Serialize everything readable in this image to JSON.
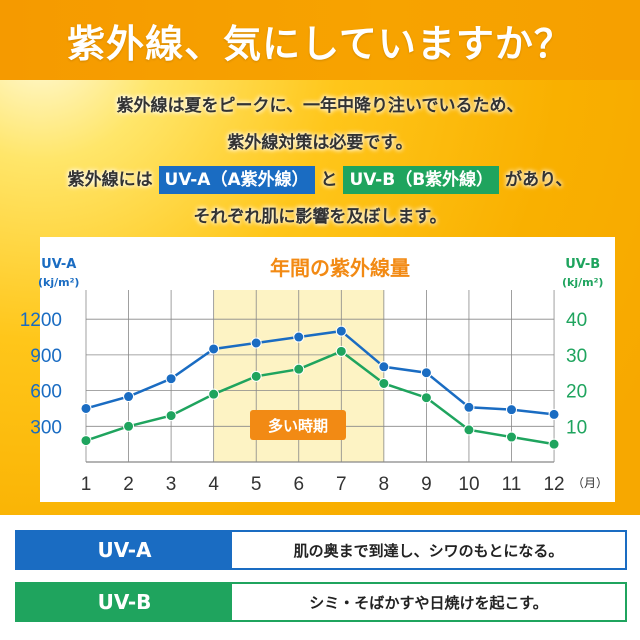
{
  "header": {
    "title": "紫外線、気にしていますか？"
  },
  "intro": {
    "line1": "紫外線は夏をピークに、一年中降り注いでいるため、",
    "line2": "紫外線対策は必要です。",
    "line3_pre": "紫外線には",
    "tag_a": "UV-A（A紫外線）",
    "line3_mid": "と",
    "tag_b": "UV-B（B紫外線）",
    "line3_post": "があり、",
    "line4": "それぞれ肌に影響を及ぼします。"
  },
  "chart_data": {
    "type": "line",
    "title": "年間の紫外線量",
    "x": [
      1,
      2,
      3,
      4,
      5,
      6,
      7,
      8,
      9,
      10,
      11,
      12
    ],
    "x_tick_labels": [
      "1",
      "2",
      "3",
      "4",
      "5",
      "6",
      "7",
      "8",
      "9",
      "10",
      "11",
      "12"
    ],
    "x_unit": "（月）",
    "left_axis": {
      "label": "UV-A",
      "unit": "(kj/m²)",
      "ylim": [
        0,
        1500
      ],
      "ticks": [
        "300",
        "600",
        "900",
        "1200"
      ]
    },
    "right_axis": {
      "label": "UV-B",
      "unit": "(kj/m²)",
      "ylim": [
        0,
        50
      ],
      "ticks": [
        "10",
        "20",
        "30",
        "40"
      ]
    },
    "series": [
      {
        "name": "UV-A",
        "axis": "left",
        "color": "#1a6cc2",
        "values": [
          450,
          550,
          700,
          950,
          1000,
          1050,
          1100,
          800,
          750,
          460,
          440,
          400
        ]
      },
      {
        "name": "UV-B",
        "axis": "right",
        "color": "#1fa45e",
        "values": [
          6,
          10,
          13,
          19,
          24,
          26,
          31,
          22,
          18,
          9,
          7,
          5
        ]
      }
    ],
    "highlight": {
      "from": 4,
      "to": 8,
      "label": "多い時期"
    },
    "grid": true
  },
  "legend": [
    {
      "key": "UV-A",
      "desc": "肌の奥まで到達し、シワのもとになる。",
      "color": "#1a6cc2"
    },
    {
      "key": "UV-B",
      "desc": "シミ・そばかすや日焼けを起こす。",
      "color": "#1fa45e"
    }
  ]
}
